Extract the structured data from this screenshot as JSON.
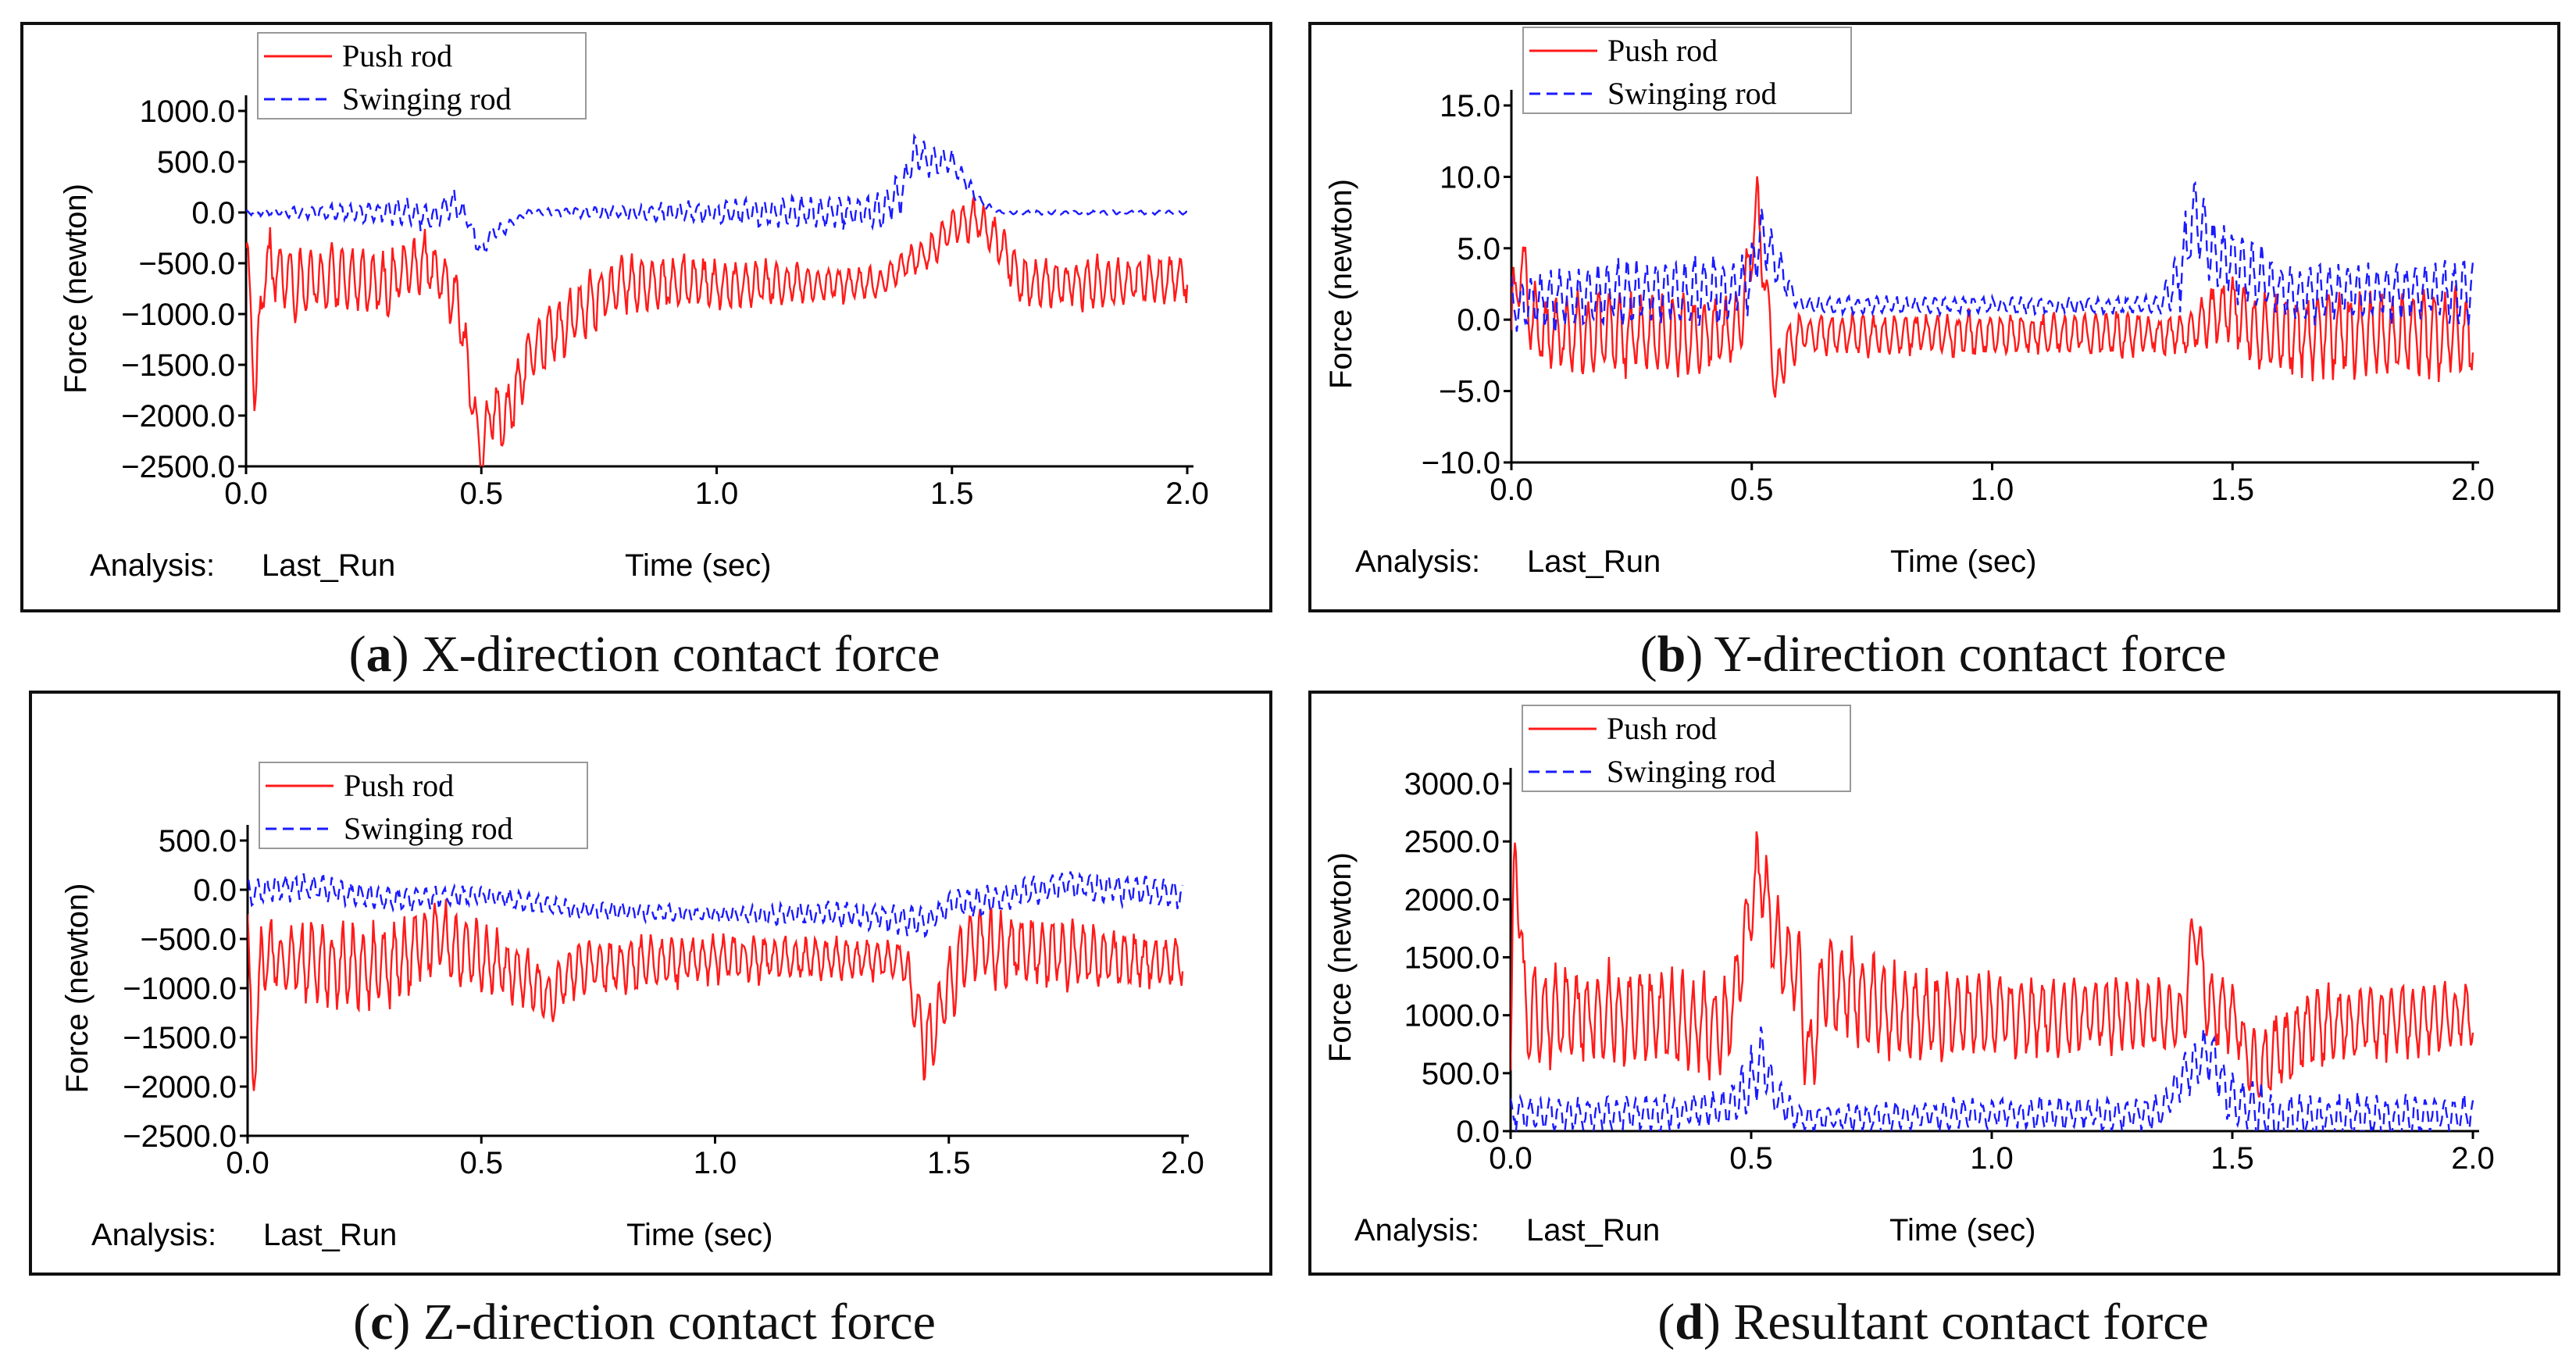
{
  "colors": {
    "push": "#ff1a1a",
    "swing": "#1a1aff",
    "axis": "#000000",
    "frame": "#111111"
  },
  "footer": {
    "analysis_label": "Analysis:",
    "run_name": "Last_Run"
  },
  "chart_data": [
    {
      "id": "a",
      "type": "line",
      "letter": "a",
      "caption": "X-direction contact force",
      "xlabel": "Time (sec)",
      "ylabel": "Force (newton)",
      "xlim": [
        0.0,
        2.0
      ],
      "ylim": [
        -2500.0,
        1000.0
      ],
      "xticks": [
        "0.0",
        "0.5",
        "1.0",
        "1.5",
        "2.0"
      ],
      "yticks": [
        "1000.0",
        "500.0",
        "0.0",
        "-500.0",
        "-1000.0",
        "-1500.0",
        "-2000.0",
        "-2500.0"
      ],
      "legend": [
        "Push rod",
        "Swinging rod"
      ],
      "series": [
        {
          "name": "Push rod",
          "style": "solid",
          "keyframes": [
            [
              0,
              -300
            ],
            [
              0.02,
              -1750
            ],
            [
              0.04,
              -500
            ],
            [
              0.1,
              -700
            ],
            [
              0.2,
              -650
            ],
            [
              0.3,
              -700
            ],
            [
              0.38,
              -450
            ],
            [
              0.45,
              -900
            ],
            [
              0.48,
              -1800
            ],
            [
              0.5,
              -2450
            ],
            [
              0.52,
              -1900
            ],
            [
              0.55,
              -2100
            ],
            [
              0.6,
              -1400
            ],
            [
              0.7,
              -1000
            ],
            [
              0.8,
              -700
            ],
            [
              1.0,
              -700
            ],
            [
              1.2,
              -700
            ],
            [
              1.35,
              -700
            ],
            [
              1.4,
              -500
            ],
            [
              1.45,
              -400
            ],
            [
              1.5,
              -150
            ],
            [
              1.55,
              -50
            ],
            [
              1.6,
              -300
            ],
            [
              1.65,
              -700
            ],
            [
              1.8,
              -700
            ],
            [
              2.0,
              -650
            ]
          ],
          "noise": [
            [
              0,
              350
            ],
            [
              0.45,
              300
            ],
            [
              0.6,
              350
            ],
            [
              1.4,
              150
            ],
            [
              1.65,
              250
            ],
            [
              2.0,
              250
            ]
          ],
          "period": 0.022
        },
        {
          "name": "Swinging rod",
          "style": "dash",
          "keyframes": [
            [
              0,
              0
            ],
            [
              0.35,
              0
            ],
            [
              0.4,
              -50
            ],
            [
              0.44,
              100
            ],
            [
              0.47,
              -50
            ],
            [
              0.5,
              -400
            ],
            [
              0.52,
              -200
            ],
            [
              0.55,
              -150
            ],
            [
              0.6,
              0
            ],
            [
              1.35,
              0
            ],
            [
              1.4,
              250
            ],
            [
              1.42,
              600
            ],
            [
              1.45,
              500
            ],
            [
              1.5,
              500
            ],
            [
              1.53,
              300
            ],
            [
              1.56,
              100
            ],
            [
              1.6,
              0
            ],
            [
              2.0,
              0
            ]
          ],
          "noise": [
            [
              0,
              20
            ],
            [
              0.4,
              150
            ],
            [
              0.6,
              30
            ],
            [
              1.4,
              200
            ],
            [
              1.6,
              20
            ],
            [
              2.0,
              20
            ]
          ],
          "period": 0.02
        }
      ]
    },
    {
      "id": "b",
      "type": "line",
      "letter": "b",
      "caption": "Y-direction contact force",
      "xlabel": "Time (sec)",
      "ylabel": "Force (newton)",
      "xlim": [
        0.0,
        2.0
      ],
      "ylim": [
        -10.0,
        15.0
      ],
      "xticks": [
        "0.0",
        "0.5",
        "1.0",
        "1.5",
        "2.0"
      ],
      "yticks": [
        "15.0",
        "10.0",
        "5.0",
        "0.0",
        "-5.0",
        "-10.0"
      ],
      "legend": [
        "Push rod",
        "Swinging rod"
      ],
      "series": [
        {
          "name": "Push rod",
          "style": "solid",
          "keyframes": [
            [
              0,
              0
            ],
            [
              0.02,
              4
            ],
            [
              0.05,
              -1
            ],
            [
              0.3,
              -1
            ],
            [
              0.45,
              -1
            ],
            [
              0.48,
              0
            ],
            [
              0.51,
              8
            ],
            [
              0.53,
              2
            ],
            [
              0.55,
              -5
            ],
            [
              0.57,
              -2
            ],
            [
              0.6,
              -1
            ],
            [
              1.0,
              -1
            ],
            [
              1.4,
              -1
            ],
            [
              1.45,
              0
            ],
            [
              1.5,
              1
            ],
            [
              1.55,
              -1
            ],
            [
              2.0,
              -1
            ]
          ],
          "noise": [
            [
              0,
              3
            ],
            [
              0.5,
              2.5
            ],
            [
              0.6,
              1.5
            ],
            [
              1.35,
              1.5
            ],
            [
              1.45,
              2
            ],
            [
              1.6,
              3
            ],
            [
              2.0,
              3
            ]
          ],
          "period": 0.022
        },
        {
          "name": "Swinging rod",
          "style": "dash",
          "keyframes": [
            [
              0,
              1
            ],
            [
              0.2,
              2
            ],
            [
              0.45,
              2
            ],
            [
              0.5,
              3
            ],
            [
              0.52,
              6
            ],
            [
              0.55,
              4
            ],
            [
              0.6,
              1
            ],
            [
              1.0,
              1
            ],
            [
              1.35,
              1
            ],
            [
              1.4,
              4
            ],
            [
              1.42,
              8
            ],
            [
              1.45,
              5
            ],
            [
              1.5,
              4
            ],
            [
              1.6,
              2
            ],
            [
              2.0,
              2
            ]
          ],
          "noise": [
            [
              0,
              2
            ],
            [
              0.5,
              2.5
            ],
            [
              0.6,
              0.6
            ],
            [
              1.35,
              0.6
            ],
            [
              1.4,
              3
            ],
            [
              1.6,
              2
            ],
            [
              2.0,
              2
            ]
          ],
          "period": 0.02
        }
      ]
    },
    {
      "id": "c",
      "type": "line",
      "letter": "c",
      "caption": "Z-direction contact force",
      "xlabel": "Time (sec)",
      "ylabel": "Force (newton)",
      "xlim": [
        0.0,
        2.0
      ],
      "ylim": [
        -2500.0,
        500.0
      ],
      "xticks": [
        "0.0",
        "0.5",
        "1.0",
        "1.5",
        "2.0"
      ],
      "yticks": [
        "500.0",
        "0.0",
        "-500.0",
        "-1000.0",
        "-1500.0",
        "-2000.0",
        "-2500.0"
      ],
      "legend": [
        "Push rod",
        "Swinging rod"
      ],
      "series": [
        {
          "name": "Push rod",
          "style": "solid",
          "keyframes": [
            [
              0,
              -300
            ],
            [
              0.01,
              -2000
            ],
            [
              0.03,
              -700
            ],
            [
              0.3,
              -800
            ],
            [
              0.4,
              -500
            ],
            [
              0.5,
              -700
            ],
            [
              0.6,
              -900
            ],
            [
              0.65,
              -1100
            ],
            [
              0.7,
              -800
            ],
            [
              1.0,
              -700
            ],
            [
              1.4,
              -700
            ],
            [
              1.43,
              -1200
            ],
            [
              1.45,
              -1600
            ],
            [
              1.5,
              -1000
            ],
            [
              1.55,
              -500
            ],
            [
              1.6,
              -600
            ],
            [
              2.0,
              -750
            ]
          ],
          "noise": [
            [
              0,
              350
            ],
            [
              0.3,
              450
            ],
            [
              0.6,
              300
            ],
            [
              1.4,
              200
            ],
            [
              1.45,
              400
            ],
            [
              1.6,
              400
            ],
            [
              2.0,
              250
            ]
          ],
          "period": 0.022
        },
        {
          "name": "Swinging rod",
          "style": "dash",
          "keyframes": [
            [
              0,
              -50
            ],
            [
              0.1,
              50
            ],
            [
              0.3,
              -100
            ],
            [
              0.5,
              -50
            ],
            [
              0.7,
              -200
            ],
            [
              1.0,
              -250
            ],
            [
              1.3,
              -250
            ],
            [
              1.4,
              -300
            ],
            [
              1.45,
              -350
            ],
            [
              1.5,
              -150
            ],
            [
              1.6,
              -100
            ],
            [
              1.75,
              50
            ],
            [
              2.0,
              -50
            ]
          ],
          "noise": [
            [
              0,
              150
            ],
            [
              0.5,
              100
            ],
            [
              1.0,
              80
            ],
            [
              1.4,
              150
            ],
            [
              2.0,
              150
            ]
          ],
          "period": 0.02
        }
      ]
    },
    {
      "id": "d",
      "type": "line",
      "letter": "d",
      "caption": "Resultant contact force",
      "xlabel": "Time (sec)",
      "ylabel": "Force (newton)",
      "xlim": [
        0.0,
        2.0
      ],
      "ylim": [
        0.0,
        3000.0
      ],
      "xticks": [
        "0.0",
        "0.5",
        "1.0",
        "1.5",
        "2.0"
      ],
      "yticks": [
        "3000.0",
        "2500.0",
        "2000.0",
        "1500.0",
        "1000.0",
        "500.0",
        "0.0"
      ],
      "legend": [
        "Push rod",
        "Swinging rod"
      ],
      "series": [
        {
          "name": "Push rod",
          "style": "solid",
          "keyframes": [
            [
              0,
              500
            ],
            [
              0.01,
              2600
            ],
            [
              0.03,
              1000
            ],
            [
              0.3,
              1000
            ],
            [
              0.45,
              900
            ],
            [
              0.5,
              1900
            ],
            [
              0.52,
              2300
            ],
            [
              0.55,
              1600
            ],
            [
              0.6,
              1400
            ],
            [
              0.62,
              500
            ],
            [
              0.65,
              1300
            ],
            [
              0.8,
              1000
            ],
            [
              1.4,
              1000
            ],
            [
              1.42,
              1800
            ],
            [
              1.45,
              1100
            ],
            [
              1.5,
              1000
            ],
            [
              1.55,
              500
            ],
            [
              1.6,
              700
            ],
            [
              1.65,
              900
            ],
            [
              2.0,
              1000
            ]
          ],
          "noise": [
            [
              0,
              450
            ],
            [
              0.5,
              400
            ],
            [
              0.62,
              450
            ],
            [
              1.4,
              300
            ],
            [
              1.5,
              350
            ],
            [
              2.0,
              300
            ]
          ],
          "period": 0.022
        },
        {
          "name": "Swinging rod",
          "style": "dash",
          "keyframes": [
            [
              0,
              150
            ],
            [
              0.3,
              150
            ],
            [
              0.45,
              200
            ],
            [
              0.5,
              400
            ],
            [
              0.52,
              650
            ],
            [
              0.55,
              300
            ],
            [
              0.6,
              100
            ],
            [
              1.0,
              150
            ],
            [
              1.35,
              150
            ],
            [
              1.4,
              500
            ],
            [
              1.45,
              700
            ],
            [
              1.5,
              250
            ],
            [
              1.6,
              100
            ],
            [
              2.0,
              150
            ]
          ],
          "noise": [
            [
              0,
              150
            ],
            [
              0.45,
              150
            ],
            [
              0.5,
              300
            ],
            [
              0.6,
              120
            ],
            [
              1.35,
              150
            ],
            [
              1.45,
              250
            ],
            [
              2.0,
              150
            ]
          ],
          "period": 0.02
        }
      ]
    }
  ]
}
